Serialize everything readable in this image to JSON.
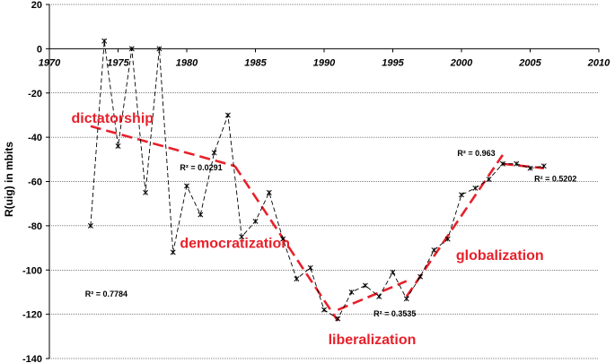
{
  "chart_data": {
    "type": "line",
    "xlabel": "",
    "ylabel": "R(uig) in mbits",
    "xlim": [
      1970,
      2010
    ],
    "ylim": [
      -140,
      20
    ],
    "xticks": [
      "1970",
      "1975",
      "1980",
      "1985",
      "1990",
      "1995",
      "2000",
      "2005",
      "2010"
    ],
    "yticks": [
      "20",
      "0",
      "-20",
      "-40",
      "-60",
      "-80",
      "-100",
      "-120",
      "-140"
    ],
    "grid": "horizontal",
    "colors": {
      "series": "#000000",
      "trend": "#e8202a",
      "grid": "#000000"
    },
    "series": [
      {
        "x": [
          1973,
          1974,
          1975,
          1976,
          1977,
          1978,
          1979,
          1980,
          1981,
          1982,
          1983,
          1984,
          1985,
          1986,
          1987,
          1988,
          1989,
          1990,
          1991,
          1992,
          1993,
          1994,
          1995,
          1996,
          1997,
          1998,
          1999,
          2000,
          2001,
          2002,
          2003,
          2004,
          2005,
          2006
        ],
        "y": [
          -80,
          3.5,
          -44,
          0,
          -65,
          0,
          -92,
          -62,
          -75,
          -47,
          -30,
          -85,
          -78,
          -65,
          -86,
          -104,
          -99,
          -118,
          -122,
          -110,
          -107,
          -112,
          -101,
          -113,
          -103,
          -91,
          -86,
          -66,
          -63,
          -59,
          -52,
          -52,
          -54,
          -53
        ]
      }
    ],
    "trends": [
      {
        "x": [
          1973,
          1983.5
        ],
        "y": [
          -35,
          -53
        ]
      },
      {
        "x": [
          1983.5,
          1991
        ],
        "y": [
          -53,
          -123
        ]
      },
      {
        "x": [
          1991,
          1996
        ],
        "y": [
          -118,
          -105
        ]
      },
      {
        "x": [
          1996,
          2003
        ],
        "y": [
          -112,
          -48
        ]
      },
      {
        "x": [
          2003,
          2006
        ],
        "y": [
          -52,
          -54
        ]
      }
    ],
    "annotations": {
      "phases": [
        {
          "text": "dictatorship",
          "x": 1971.6,
          "y": -33.5
        },
        {
          "text": "democratization",
          "x": 1979.5,
          "y": -90
        },
        {
          "text": "liberalization",
          "x": 1990.3,
          "y": -133.5
        },
        {
          "text": "globalization",
          "x": 1999.6,
          "y": -95.5
        }
      ],
      "r2": [
        {
          "text": "R² = 0.0291",
          "x": 1979.5,
          "y": -55
        },
        {
          "text": "R² = 0.7784",
          "x": 1972.6,
          "y": -112
        },
        {
          "text": "R² = 0.3535",
          "x": 1993.6,
          "y": -121
        },
        {
          "text": "R² = 0.963",
          "x": 1999.7,
          "y": -48.5
        },
        {
          "text": "R² = 0.5202",
          "x": 2005.3,
          "y": -60
        }
      ]
    }
  }
}
